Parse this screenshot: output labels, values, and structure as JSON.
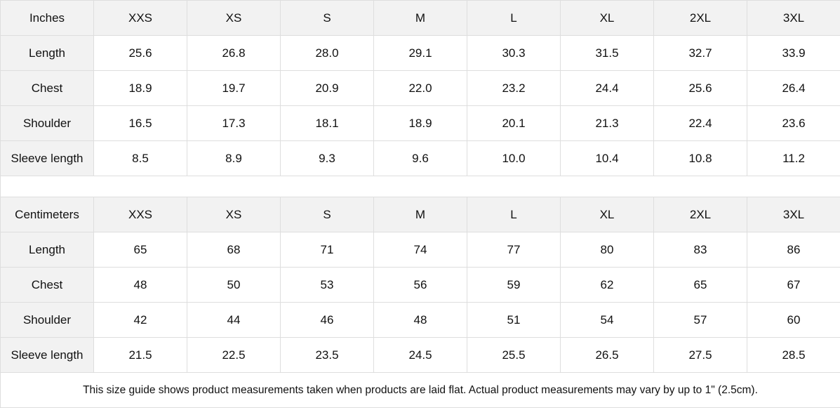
{
  "sizes": [
    "XXS",
    "XS",
    "S",
    "M",
    "L",
    "XL",
    "2XL",
    "3XL"
  ],
  "inches": {
    "unit_label": "Inches",
    "rows": [
      {
        "label": "Length",
        "values": [
          "25.6",
          "26.8",
          "28.0",
          "29.1",
          "30.3",
          "31.5",
          "32.7",
          "33.9"
        ]
      },
      {
        "label": "Chest",
        "values": [
          "18.9",
          "19.7",
          "20.9",
          "22.0",
          "23.2",
          "24.4",
          "25.6",
          "26.4"
        ]
      },
      {
        "label": "Shoulder",
        "values": [
          "16.5",
          "17.3",
          "18.1",
          "18.9",
          "20.1",
          "21.3",
          "22.4",
          "23.6"
        ]
      },
      {
        "label": "Sleeve length",
        "values": [
          "8.5",
          "8.9",
          "9.3",
          "9.6",
          "10.0",
          "10.4",
          "10.8",
          "11.2"
        ]
      }
    ]
  },
  "centimeters": {
    "unit_label": "Centimeters",
    "rows": [
      {
        "label": "Length",
        "values": [
          "65",
          "68",
          "71",
          "74",
          "77",
          "80",
          "83",
          "86"
        ]
      },
      {
        "label": "Chest",
        "values": [
          "48",
          "50",
          "53",
          "56",
          "59",
          "62",
          "65",
          "67"
        ]
      },
      {
        "label": "Shoulder",
        "values": [
          "42",
          "44",
          "46",
          "48",
          "51",
          "54",
          "57",
          "60"
        ]
      },
      {
        "label": "Sleeve length",
        "values": [
          "21.5",
          "22.5",
          "23.5",
          "24.5",
          "25.5",
          "26.5",
          "27.5",
          "28.5"
        ]
      }
    ]
  },
  "footnote": "This size guide shows product measurements taken when products are laid flat.  Actual product measurements may vary by up to 1\" (2.5cm).",
  "colors": {
    "header_bg": "#f2f2f2",
    "border": "#dedede"
  }
}
